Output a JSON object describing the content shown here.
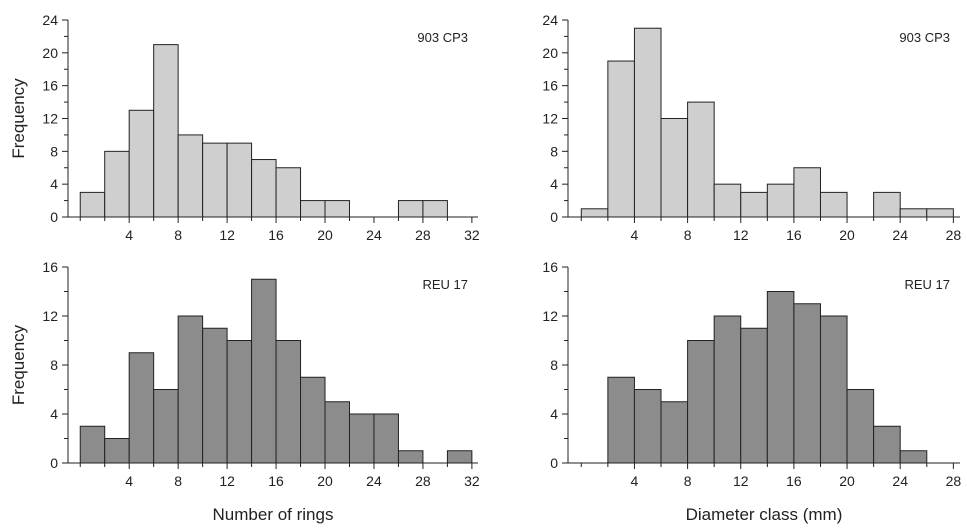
{
  "chart_data": [
    {
      "type": "bar",
      "panel_label": "903 CP3",
      "ylabel": "Frequency",
      "xlabel": "",
      "bin_width": 2,
      "bin_starts": [
        0,
        2,
        4,
        6,
        8,
        10,
        12,
        14,
        16,
        18,
        20,
        22,
        24,
        26,
        28,
        30
      ],
      "values": [
        3,
        8,
        13,
        21,
        10,
        9,
        9,
        7,
        6,
        2,
        2,
        0,
        0,
        2,
        2,
        0
      ],
      "xlim": [
        -1,
        32.5
      ],
      "ylim": [
        0,
        24
      ],
      "xticks": [
        4,
        8,
        12,
        16,
        20,
        24,
        28,
        32
      ],
      "yticks": [
        0,
        4,
        8,
        12,
        16,
        20,
        24
      ],
      "color": "#cfcfcf"
    },
    {
      "type": "bar",
      "panel_label": "903 CP3",
      "ylabel": "",
      "xlabel": "",
      "bin_width": 2,
      "bin_starts": [
        0,
        2,
        4,
        6,
        8,
        10,
        12,
        14,
        16,
        18,
        20,
        22,
        24,
        26
      ],
      "values": [
        1,
        19,
        23,
        12,
        14,
        4,
        3,
        4,
        6,
        3,
        0,
        3,
        1,
        1
      ],
      "xlim": [
        -1,
        28.5
      ],
      "ylim": [
        0,
        24
      ],
      "xticks": [
        4,
        8,
        12,
        16,
        20,
        24,
        28
      ],
      "yticks": [
        0,
        4,
        8,
        12,
        16,
        20,
        24
      ],
      "color": "#cfcfcf"
    },
    {
      "type": "bar",
      "panel_label": "REU 17",
      "ylabel": "Frequency",
      "xlabel": "Number of rings",
      "bin_width": 2,
      "bin_starts": [
        0,
        2,
        4,
        6,
        8,
        10,
        12,
        14,
        16,
        18,
        20,
        22,
        24,
        26,
        28,
        30
      ],
      "values": [
        3,
        2,
        9,
        6,
        12,
        11,
        10,
        15,
        10,
        7,
        5,
        4,
        4,
        1,
        0,
        1
      ],
      "xlim": [
        -1,
        32.5
      ],
      "ylim": [
        0,
        16
      ],
      "xticks": [
        4,
        8,
        12,
        16,
        20,
        24,
        28,
        32
      ],
      "yticks": [
        0,
        4,
        8,
        12,
        16
      ],
      "color": "#8c8c8c"
    },
    {
      "type": "bar",
      "panel_label": "REU 17",
      "ylabel": "",
      "xlabel": "Diameter class (mm)",
      "bin_width": 2,
      "bin_starts": [
        0,
        2,
        4,
        6,
        8,
        10,
        12,
        14,
        16,
        18,
        20,
        22,
        24,
        26
      ],
      "values": [
        0,
        7,
        6,
        5,
        10,
        12,
        11,
        14,
        13,
        12,
        6,
        3,
        1,
        0
      ],
      "xlim": [
        -1,
        28.5
      ],
      "ylim": [
        0,
        16
      ],
      "xticks": [
        4,
        8,
        12,
        16,
        20,
        24,
        28
      ],
      "yticks": [
        0,
        4,
        8,
        12,
        16
      ],
      "color": "#8c8c8c"
    }
  ]
}
